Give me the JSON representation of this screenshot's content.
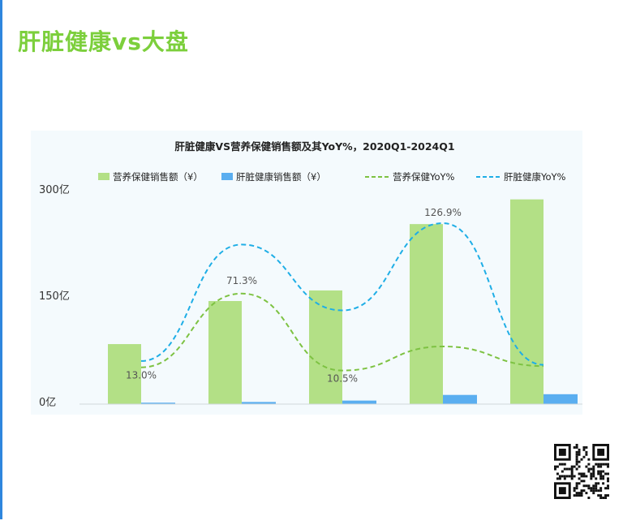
{
  "page": {
    "title": "肝脏健康vs大盘"
  },
  "chart_data": {
    "type": "bar",
    "title": "肝脏健康VS营养保健销售额及其YoY%，2020Q1-2024Q1",
    "y_ticks": [
      "300亿",
      "150亿",
      "0亿"
    ],
    "ylim": [
      0,
      300
    ],
    "periods": 5,
    "legend": {
      "placement": "top",
      "items": [
        {
          "label": "营养保健销售额（¥）",
          "kind": "bar",
          "color": "#b3e086"
        },
        {
          "label": "肝脏健康销售额（¥）",
          "kind": "bar",
          "color": "#5aaef0"
        },
        {
          "label": "营养保健YoY%",
          "kind": "dashed-line",
          "color": "#7dc242"
        },
        {
          "label": "肝脏健康YoY%",
          "kind": "dashed-line",
          "color": "#1faee6"
        }
      ]
    },
    "series": [
      {
        "name": "营养保健销售额（¥）",
        "type": "bar",
        "values": [
          85,
          146,
          161,
          255,
          290
        ]
      },
      {
        "name": "肝脏健康销售额（¥）",
        "type": "bar",
        "values": [
          2,
          3,
          5,
          13,
          14
        ]
      },
      {
        "name": "营养保健YoY%",
        "type": "line",
        "values": [
          13.0,
          71.3,
          10.5,
          29.5,
          14.0
        ]
      },
      {
        "name": "肝脏健康YoY%",
        "type": "line",
        "values": [
          18.0,
          110.0,
          58.0,
          126.9,
          15.0
        ]
      }
    ],
    "data_labels": [
      {
        "series": 2,
        "index": 0,
        "text": "13.0%"
      },
      {
        "series": 2,
        "index": 1,
        "text": "71.3%"
      },
      {
        "series": 2,
        "index": 2,
        "text": "10.5%"
      },
      {
        "series": 3,
        "index": 3,
        "text": "126.9%"
      }
    ],
    "colors": {
      "bar_main": "#b3e086",
      "bar_sub": "#5aaef0",
      "line_main": "#7dc242",
      "line_sub": "#1faee6"
    }
  },
  "qr": {
    "icon": "qr-code-icon"
  }
}
